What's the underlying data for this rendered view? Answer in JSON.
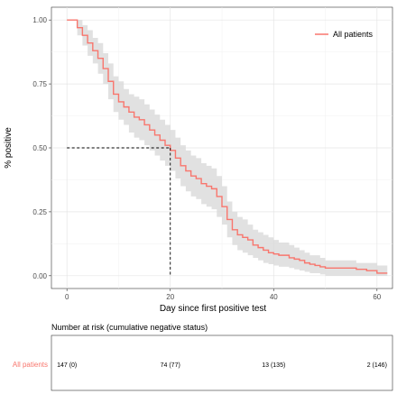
{
  "chart_data": {
    "type": "line",
    "step": true,
    "xlabel": "Day since first positive test",
    "ylabel": "% positive",
    "xlim": [
      -3,
      63
    ],
    "ylim": [
      -0.05,
      1.05
    ],
    "x_ticks": [
      0,
      20,
      40,
      60
    ],
    "y_ticks": [
      0,
      0.25,
      0.5,
      0.75,
      1.0
    ],
    "y_tick_labels": [
      "0.00",
      "0.25",
      "0.50",
      "0.75",
      "1.00"
    ],
    "grid": true,
    "legend_position": "top-right",
    "series": [
      {
        "name": "All patients",
        "color": "#f8766d",
        "confidence_band": true,
        "x": [
          0,
          2,
          3,
          4,
          5,
          6,
          7,
          8,
          9,
          10,
          11,
          12,
          13,
          14,
          15,
          16,
          17,
          18,
          19,
          20,
          21,
          22,
          23,
          24,
          25,
          26,
          27,
          28,
          29,
          30,
          31,
          32,
          33,
          34,
          35,
          36,
          37,
          38,
          39,
          40,
          41,
          42,
          43,
          44,
          45,
          46,
          47,
          48,
          49,
          50,
          52,
          54,
          56,
          58,
          60,
          62
        ],
        "y": [
          1.0,
          0.97,
          0.94,
          0.91,
          0.88,
          0.85,
          0.81,
          0.76,
          0.71,
          0.68,
          0.66,
          0.64,
          0.62,
          0.61,
          0.59,
          0.57,
          0.55,
          0.53,
          0.51,
          0.49,
          0.46,
          0.43,
          0.41,
          0.39,
          0.38,
          0.36,
          0.35,
          0.34,
          0.31,
          0.27,
          0.22,
          0.18,
          0.16,
          0.15,
          0.14,
          0.12,
          0.11,
          0.1,
          0.09,
          0.085,
          0.08,
          0.08,
          0.07,
          0.065,
          0.06,
          0.05,
          0.045,
          0.04,
          0.035,
          0.03,
          0.03,
          0.03,
          0.025,
          0.02,
          0.01,
          0.01
        ],
        "lower": [
          1.0,
          0.94,
          0.9,
          0.86,
          0.83,
          0.79,
          0.75,
          0.69,
          0.64,
          0.61,
          0.59,
          0.56,
          0.54,
          0.53,
          0.51,
          0.49,
          0.47,
          0.45,
          0.43,
          0.41,
          0.38,
          0.35,
          0.33,
          0.31,
          0.3,
          0.28,
          0.27,
          0.26,
          0.23,
          0.2,
          0.15,
          0.12,
          0.1,
          0.09,
          0.08,
          0.07,
          0.06,
          0.05,
          0.045,
          0.04,
          0.035,
          0.035,
          0.03,
          0.025,
          0.02,
          0.015,
          0.01,
          0.01,
          0.005,
          0.0,
          0.0,
          0.0,
          0.0,
          0.0,
          0.0,
          0.0
        ],
        "upper": [
          1.0,
          1.0,
          0.98,
          0.96,
          0.93,
          0.91,
          0.87,
          0.83,
          0.78,
          0.76,
          0.73,
          0.71,
          0.7,
          0.69,
          0.67,
          0.65,
          0.63,
          0.61,
          0.59,
          0.57,
          0.54,
          0.51,
          0.49,
          0.47,
          0.46,
          0.44,
          0.43,
          0.42,
          0.39,
          0.35,
          0.29,
          0.25,
          0.23,
          0.22,
          0.2,
          0.18,
          0.17,
          0.16,
          0.15,
          0.14,
          0.13,
          0.13,
          0.12,
          0.11,
          0.1,
          0.09,
          0.08,
          0.08,
          0.07,
          0.06,
          0.06,
          0.06,
          0.05,
          0.05,
          0.04,
          0.04
        ]
      }
    ],
    "median": {
      "x": 20,
      "y": 0.5
    },
    "risk_table": {
      "title": "Number at risk (cumulative negative status)",
      "groups": [
        {
          "name": "All patients",
          "color": "#f8766d",
          "entries": [
            {
              "x": 0,
              "label": "147 (0)"
            },
            {
              "x": 20,
              "label": "74 (77)"
            },
            {
              "x": 40,
              "label": "13 (135)"
            },
            {
              "x": 60,
              "label": "2 (146)"
            }
          ]
        }
      ]
    }
  }
}
